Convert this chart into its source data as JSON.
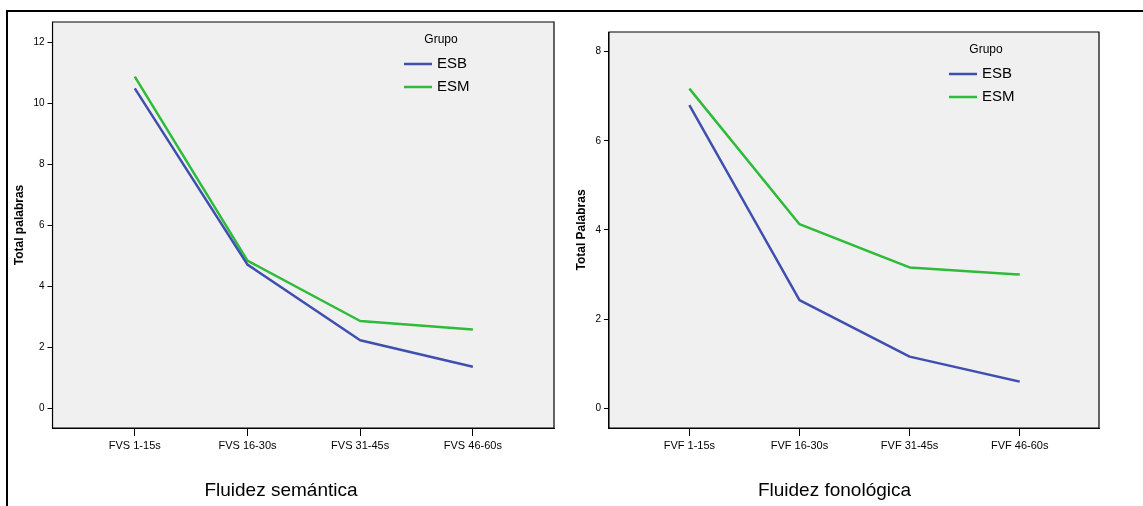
{
  "chart_data": [
    {
      "type": "line",
      "title": "Fluidez semántica",
      "ylabel": "Total palabras",
      "legend_title": "Grupo",
      "legend": "top right",
      "grid": false,
      "categories": [
        "FVS 1-15s",
        "FVS 16-30s",
        "FVS 31-45s",
        "FVS 46-60s"
      ],
      "ylim": [
        -0.64,
        12.68
      ],
      "yticks": [
        0,
        2,
        4,
        6,
        8,
        10,
        12
      ],
      "series": [
        {
          "name": "ESB",
          "color": "#3f4fb0",
          "values": [
            10.5,
            4.72,
            2.24,
            1.37
          ]
        },
        {
          "name": "ESM",
          "color": "#2fbb3a",
          "values": [
            10.89,
            4.85,
            2.87,
            2.59
          ]
        }
      ]
    },
    {
      "type": "line",
      "title": "Fluidez fonológica",
      "ylabel": "Total Palabras",
      "legend_title": "Grupo",
      "legend": "top right",
      "grid": false,
      "categories": [
        "FVF 1-15s",
        "FVF 16-30s",
        "FVF 31-45s",
        "FVF 46-60s"
      ],
      "ylim": [
        -0.44,
        8.44
      ],
      "yticks": [
        0,
        2,
        4,
        6,
        8
      ],
      "series": [
        {
          "name": "ESB",
          "color": "#3f4fb0",
          "values": [
            6.8,
            2.43,
            1.16,
            0.6
          ]
        },
        {
          "name": "ESM",
          "color": "#2fbb3a",
          "values": [
            7.17,
            4.13,
            3.16,
            3.0
          ]
        }
      ]
    }
  ]
}
